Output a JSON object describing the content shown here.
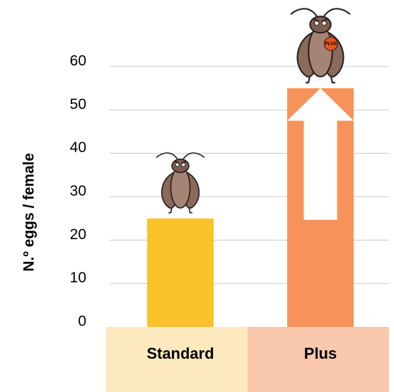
{
  "chart_data": {
    "type": "bar",
    "y_label": "N.º eggs / female",
    "categories": [
      "Standard",
      "Plus"
    ],
    "values": [
      25,
      55
    ],
    "colors": [
      "#fbc22c",
      "#f7935a"
    ],
    "band_colors": [
      "#fde9bf",
      "#f9c8ad"
    ],
    "annotation": "PLUS",
    "ylim": [
      0,
      60
    ],
    "yticks": [
      0,
      10,
      20,
      30,
      40,
      50,
      60
    ],
    "grid": true
  }
}
